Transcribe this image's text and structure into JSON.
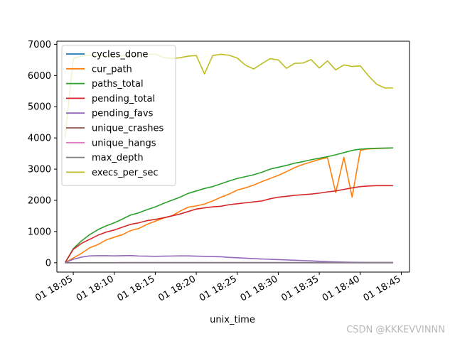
{
  "chart_data": {
    "type": "line",
    "title": "",
    "xlabel": "unix_time",
    "ylabel": "",
    "xlim": [
      "18:03",
      "18:46"
    ],
    "ylim": [
      -300,
      7100
    ],
    "yticks": [
      0,
      1000,
      2000,
      3000,
      4000,
      5000,
      6000,
      7000
    ],
    "xticks": [
      "01 18:05",
      "01 18:10",
      "01 18:15",
      "01 18:20",
      "01 18:25",
      "01 18:30",
      "01 18:35",
      "01 18:40",
      "01 18:45"
    ],
    "legend_position": "upper-left",
    "grid": false,
    "x": [
      "18:04",
      "18:05",
      "18:06",
      "18:07",
      "18:08",
      "18:09",
      "18:10",
      "18:11",
      "18:12",
      "18:13",
      "18:14",
      "18:15",
      "18:16",
      "18:17",
      "18:18",
      "18:19",
      "18:20",
      "18:21",
      "18:22",
      "18:23",
      "18:24",
      "18:25",
      "18:26",
      "18:27",
      "18:28",
      "18:29",
      "18:30",
      "18:31",
      "18:32",
      "18:33",
      "18:34",
      "18:35",
      "18:36",
      "18:37",
      "18:38",
      "18:39",
      "18:40",
      "18:41",
      "18:42",
      "18:43",
      "18:44"
    ],
    "series": [
      {
        "name": "cycles_done",
        "color": "#1f77b4",
        "values": [
          0,
          0,
          0,
          0,
          0,
          0,
          0,
          0,
          0,
          0,
          0,
          0,
          0,
          0,
          0,
          0,
          0,
          0,
          0,
          0,
          0,
          0,
          0,
          0,
          0,
          0,
          0,
          0,
          0,
          0,
          0,
          0,
          0,
          0,
          0,
          0,
          0,
          0,
          0,
          0,
          0
        ]
      },
      {
        "name": "cur_path",
        "color": "#ff7f0e",
        "values": [
          0,
          150,
          300,
          480,
          580,
          730,
          820,
          900,
          1030,
          1100,
          1230,
          1330,
          1430,
          1500,
          1650,
          1780,
          1820,
          1880,
          1980,
          2100,
          2200,
          2330,
          2400,
          2490,
          2600,
          2700,
          2800,
          2920,
          3050,
          3150,
          3230,
          3310,
          3370,
          2250,
          3380,
          2100,
          3600,
          3650,
          3660,
          3670,
          3680
        ]
      },
      {
        "name": "paths_total",
        "color": "#2ca02c",
        "values": [
          0,
          450,
          700,
          900,
          1060,
          1180,
          1280,
          1400,
          1530,
          1600,
          1700,
          1790,
          1900,
          2000,
          2100,
          2220,
          2300,
          2380,
          2440,
          2530,
          2620,
          2700,
          2760,
          2820,
          2900,
          3000,
          3060,
          3120,
          3190,
          3240,
          3300,
          3350,
          3400,
          3460,
          3530,
          3600,
          3640,
          3660,
          3670,
          3675,
          3680
        ]
      },
      {
        "name": "pending_total",
        "color": "#d62728",
        "values": [
          0,
          430,
          620,
          750,
          880,
          980,
          1050,
          1140,
          1230,
          1280,
          1350,
          1390,
          1440,
          1500,
          1560,
          1640,
          1720,
          1760,
          1790,
          1810,
          1860,
          1890,
          1920,
          1950,
          1980,
          2050,
          2100,
          2130,
          2160,
          2180,
          2200,
          2230,
          2270,
          2300,
          2350,
          2400,
          2440,
          2460,
          2470,
          2470,
          2470
        ]
      },
      {
        "name": "pending_favs",
        "color": "#9467bd",
        "values": [
          0,
          110,
          180,
          220,
          225,
          225,
          220,
          225,
          230,
          215,
          210,
          205,
          210,
          215,
          220,
          220,
          210,
          205,
          200,
          190,
          170,
          160,
          145,
          130,
          120,
          110,
          100,
          90,
          80,
          70,
          60,
          45,
          35,
          25,
          20,
          15,
          12,
          10,
          10,
          10,
          10
        ]
      },
      {
        "name": "unique_crashes",
        "color": "#8c564b",
        "values": [
          0,
          0,
          0,
          0,
          0,
          0,
          0,
          0,
          0,
          0,
          0,
          0,
          0,
          0,
          0,
          0,
          0,
          0,
          0,
          0,
          0,
          0,
          0,
          0,
          0,
          0,
          0,
          0,
          0,
          0,
          0,
          0,
          0,
          0,
          0,
          0,
          0,
          0,
          0,
          0,
          0
        ]
      },
      {
        "name": "unique_hangs",
        "color": "#e377c2",
        "values": [
          0,
          0,
          0,
          0,
          0,
          0,
          0,
          0,
          0,
          0,
          0,
          0,
          0,
          0,
          0,
          0,
          0,
          0,
          0,
          0,
          0,
          0,
          0,
          0,
          0,
          0,
          0,
          0,
          0,
          0,
          0,
          0,
          0,
          0,
          0,
          0,
          0,
          0,
          0,
          0,
          0
        ]
      },
      {
        "name": "max_depth",
        "color": "#7f7f7f",
        "values": [
          1,
          2,
          3,
          4,
          4,
          4,
          4,
          5,
          5,
          5,
          5,
          5,
          5,
          5,
          6,
          6,
          6,
          6,
          6,
          6,
          6,
          6,
          6,
          6,
          6,
          6,
          6,
          6,
          6,
          6,
          6,
          6,
          6,
          6,
          6,
          6,
          6,
          6,
          6,
          6,
          6
        ]
      },
      {
        "name": "execs_per_sec",
        "color": "#bcbd22",
        "values": [
          4000,
          6550,
          6620,
          6650,
          6640,
          6620,
          6600,
          6630,
          6650,
          6650,
          6680,
          6690,
          6580,
          6540,
          6570,
          6620,
          6640,
          6050,
          6640,
          6680,
          6650,
          6560,
          6330,
          6210,
          6380,
          6540,
          6500,
          6230,
          6390,
          6400,
          6510,
          6240,
          6470,
          6180,
          6340,
          6290,
          6310,
          5990,
          5720,
          5600,
          5600
        ]
      }
    ]
  },
  "watermark": "CSDN @KKKEVVINNN"
}
